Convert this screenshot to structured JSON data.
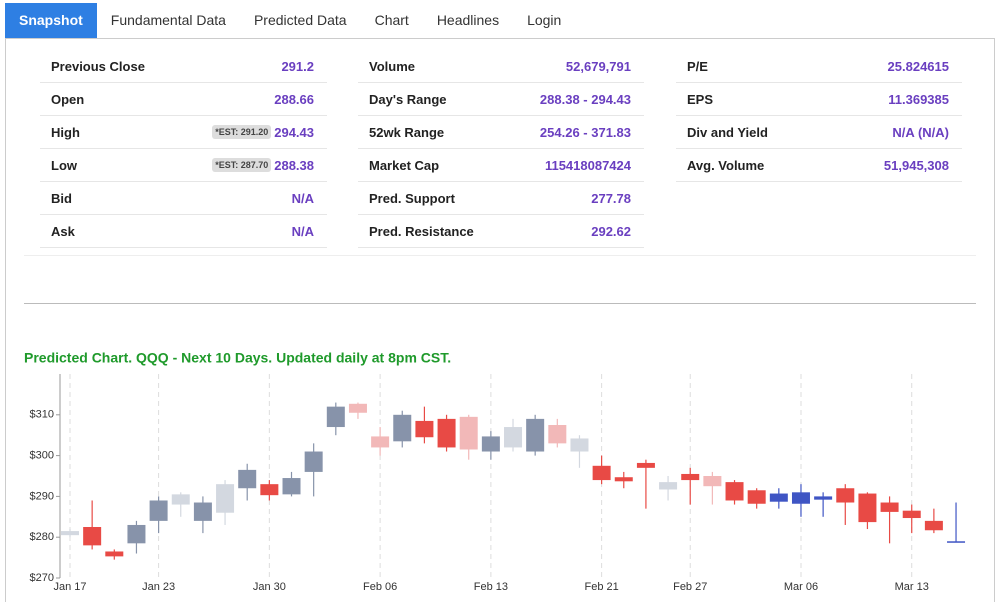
{
  "tabs": [
    "Snapshot",
    "Fundamental Data",
    "Predicted Data",
    "Chart",
    "Headlines",
    "Login"
  ],
  "snapshot": {
    "columns": [
      [
        {
          "label": "Previous Close",
          "value": "291.2"
        },
        {
          "label": "Open",
          "value": "288.66"
        },
        {
          "label": "High",
          "badge": "*EST: 291.20",
          "value": "294.43"
        },
        {
          "label": "Low",
          "badge": "*EST: 287.70",
          "value": "288.38"
        },
        {
          "label": "Bid",
          "value": "N/A"
        },
        {
          "label": "Ask",
          "value": "N/A"
        }
      ],
      [
        {
          "label": "Volume",
          "value": "52,679,791"
        },
        {
          "label": "Day's Range",
          "value": "288.38 - 294.43"
        },
        {
          "label": "52wk Range",
          "value": "254.26 - 371.83"
        },
        {
          "label": "Market Cap",
          "value": "115418087424"
        },
        {
          "label": "Pred. Support",
          "value": "277.78"
        },
        {
          "label": "Pred. Resistance",
          "value": "292.62"
        }
      ],
      [
        {
          "label": "P/E",
          "value": "25.824615"
        },
        {
          "label": "EPS",
          "value": "11.369385"
        },
        {
          "label": "Div and Yield",
          "value": "N/A (N/A)"
        },
        {
          "label": "Avg. Volume",
          "value": "51,945,308"
        }
      ]
    ]
  },
  "chart_data": {
    "type": "candlestick",
    "title": "Predicted Chart. QQQ - Next 10 Days. Updated daily at 8pm CST.",
    "categories": [
      "Jan 17",
      null,
      null,
      null,
      "Jan 23",
      null,
      null,
      null,
      null,
      "Jan 30",
      null,
      null,
      null,
      null,
      "Feb 06",
      null,
      null,
      null,
      null,
      "Feb 13",
      null,
      null,
      null,
      null,
      "Feb 21",
      null,
      null,
      null,
      "Feb 27",
      null,
      null,
      null,
      null,
      "Mar 06",
      null,
      null,
      null,
      null,
      "Mar 13",
      null,
      null
    ],
    "open": [
      280.5,
      282.5,
      276.5,
      278.5,
      284,
      288,
      284,
      286,
      292,
      293,
      290.5,
      296,
      307,
      312.7,
      304.7,
      303.5,
      308.5,
      309,
      309.5,
      301,
      302,
      301,
      307.5,
      304.2,
      297.5,
      294.7,
      298.2,
      291.7,
      295.5,
      295,
      293.5,
      291.5,
      288.7,
      288.2,
      289.2,
      292,
      290.7,
      288.5,
      286.5,
      284,
      278.8
    ],
    "high": [
      282,
      289,
      277,
      284,
      290,
      291,
      290,
      294,
      298,
      294,
      296,
      303,
      313,
      313,
      307,
      311,
      312,
      310,
      310,
      306,
      309,
      310,
      309,
      305,
      300,
      296,
      299,
      295,
      297,
      296,
      294,
      292,
      292,
      293,
      291,
      293,
      291,
      290,
      288,
      287,
      288.5
    ],
    "low": [
      280,
      277,
      274.5,
      276,
      281,
      285,
      281,
      283,
      289,
      289,
      290,
      290,
      305,
      309,
      300,
      302,
      303,
      301,
      299,
      299,
      301,
      300,
      302,
      297,
      293,
      292,
      287,
      289,
      288,
      288,
      288,
      287,
      287,
      285,
      285,
      283,
      282,
      278.5,
      281,
      281,
      278.8
    ],
    "close": [
      281.5,
      278,
      275.3,
      283,
      289,
      290.5,
      288.5,
      293,
      296.5,
      290.3,
      294.5,
      301,
      312,
      310.5,
      302,
      310,
      304.5,
      302,
      301.5,
      304.7,
      307,
      309,
      303,
      301,
      294,
      293.7,
      297,
      293.5,
      294,
      292.5,
      289,
      288.2,
      290.7,
      291,
      290,
      288.5,
      283.7,
      286.2,
      284.7,
      281.7,
      279
    ],
    "colors": [
      "#d3d8e0",
      "#e84a45",
      "#e84a45",
      "#8793aa",
      "#8793aa",
      "#d3d8e0",
      "#8793aa",
      "#d3d8e0",
      "#8793aa",
      "#e84a45",
      "#8793aa",
      "#8793aa",
      "#8793aa",
      "#f2b8b8",
      "#f2b8b8",
      "#8793aa",
      "#e84a45",
      "#e84a45",
      "#f2b8b8",
      "#8793aa",
      "#d3d8e0",
      "#8793aa",
      "#f2b8b8",
      "#d3d8e0",
      "#e84a45",
      "#e84a45",
      "#e84a45",
      "#d3d8e0",
      "#e84a45",
      "#f2b8b8",
      "#e84a45",
      "#e84a45",
      "#3f55c4",
      "#3f55c4",
      "#3f55c4",
      "#e84a45",
      "#e84a45",
      "#e84a45",
      "#e84a45",
      "#e84a45",
      "#3f55c4"
    ],
    "ylim": [
      270,
      320
    ],
    "yticks": [
      {
        "value": 270,
        "label": "$270"
      },
      {
        "value": 280,
        "label": "$280"
      },
      {
        "value": 290,
        "label": "$290"
      },
      {
        "value": 300,
        "label": "$300"
      },
      {
        "value": 310,
        "label": "$310"
      }
    ]
  }
}
